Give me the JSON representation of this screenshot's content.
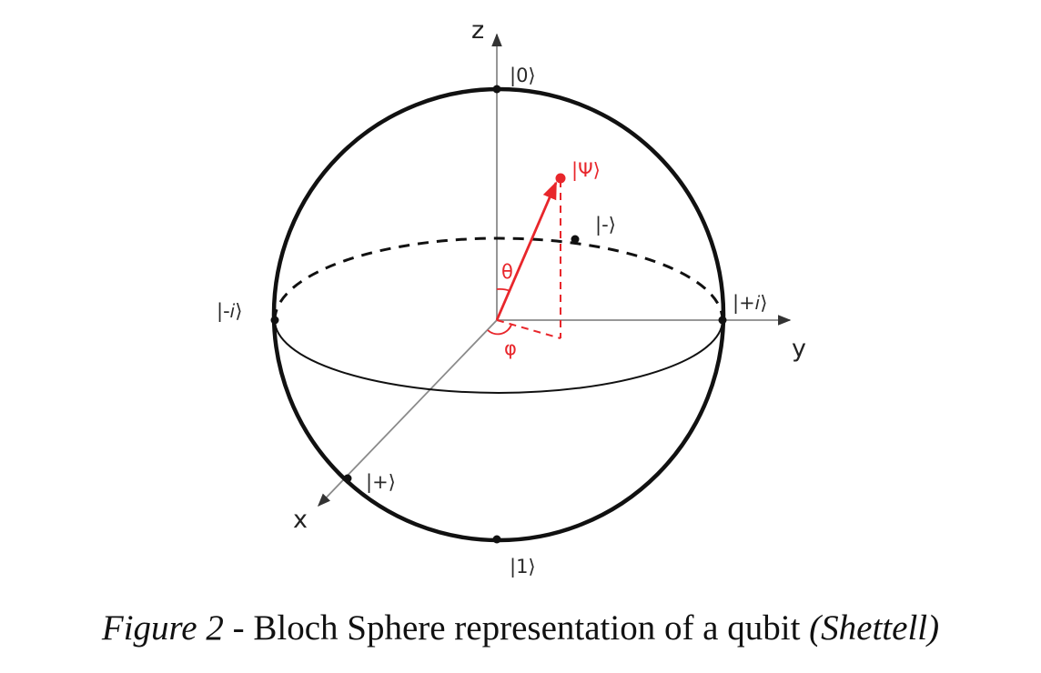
{
  "diagram": {
    "axes": {
      "z": "z",
      "x": "x",
      "y": "y"
    },
    "states": {
      "zero": "|0⟩",
      "one": "|1⟩",
      "plus": "|+⟩",
      "minus": "|-⟩",
      "plus_i": "|+𝑖⟩",
      "minus_i": "|-𝑖⟩",
      "psi": "|Ψ⟩"
    },
    "angles": {
      "theta": "θ",
      "phi": "φ"
    },
    "colors": {
      "sphere": "#111111",
      "axis": "#8a8a8a",
      "state_vector": "#e8262b"
    }
  },
  "caption": {
    "figure_label": "Figure 2",
    "separator": " - ",
    "text": "Bloch Sphere representation of a qubit ",
    "source": "(Shettell)"
  }
}
